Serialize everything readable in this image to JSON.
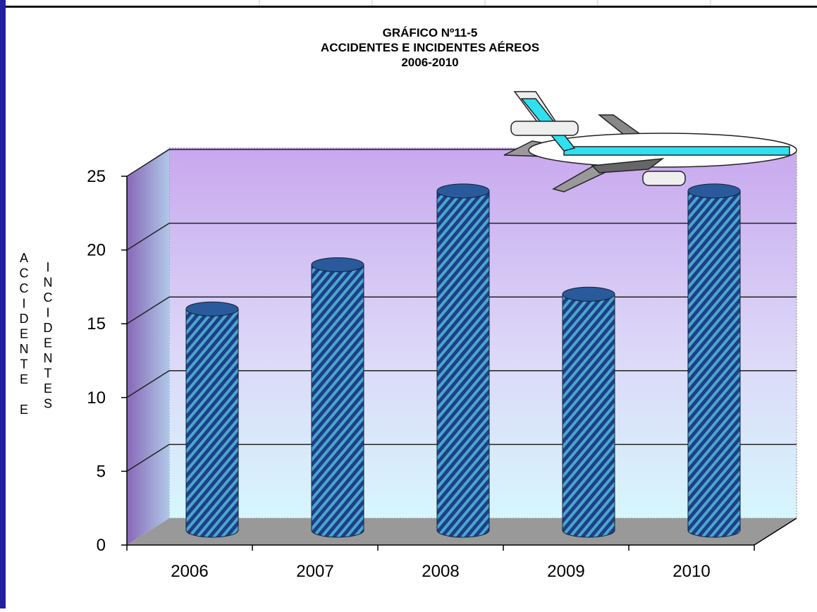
{
  "chart_data": {
    "type": "bar",
    "title": [
      "GRÁFICO Nº11-5",
      "ACCIDENTES E INCIDENTES AÉREOS",
      "2006-2010"
    ],
    "y_label": [
      "ACCIDENTE E",
      "INCIDENTES"
    ],
    "categories": [
      "2006",
      "2007",
      "2008",
      "2009",
      "2010"
    ],
    "values": [
      15,
      18,
      23,
      16,
      23
    ],
    "color": "#2a5a9c",
    "ylim": [
      0,
      25
    ],
    "yticks": [
      0,
      5,
      10,
      15,
      20,
      25
    ],
    "grid": true
  }
}
